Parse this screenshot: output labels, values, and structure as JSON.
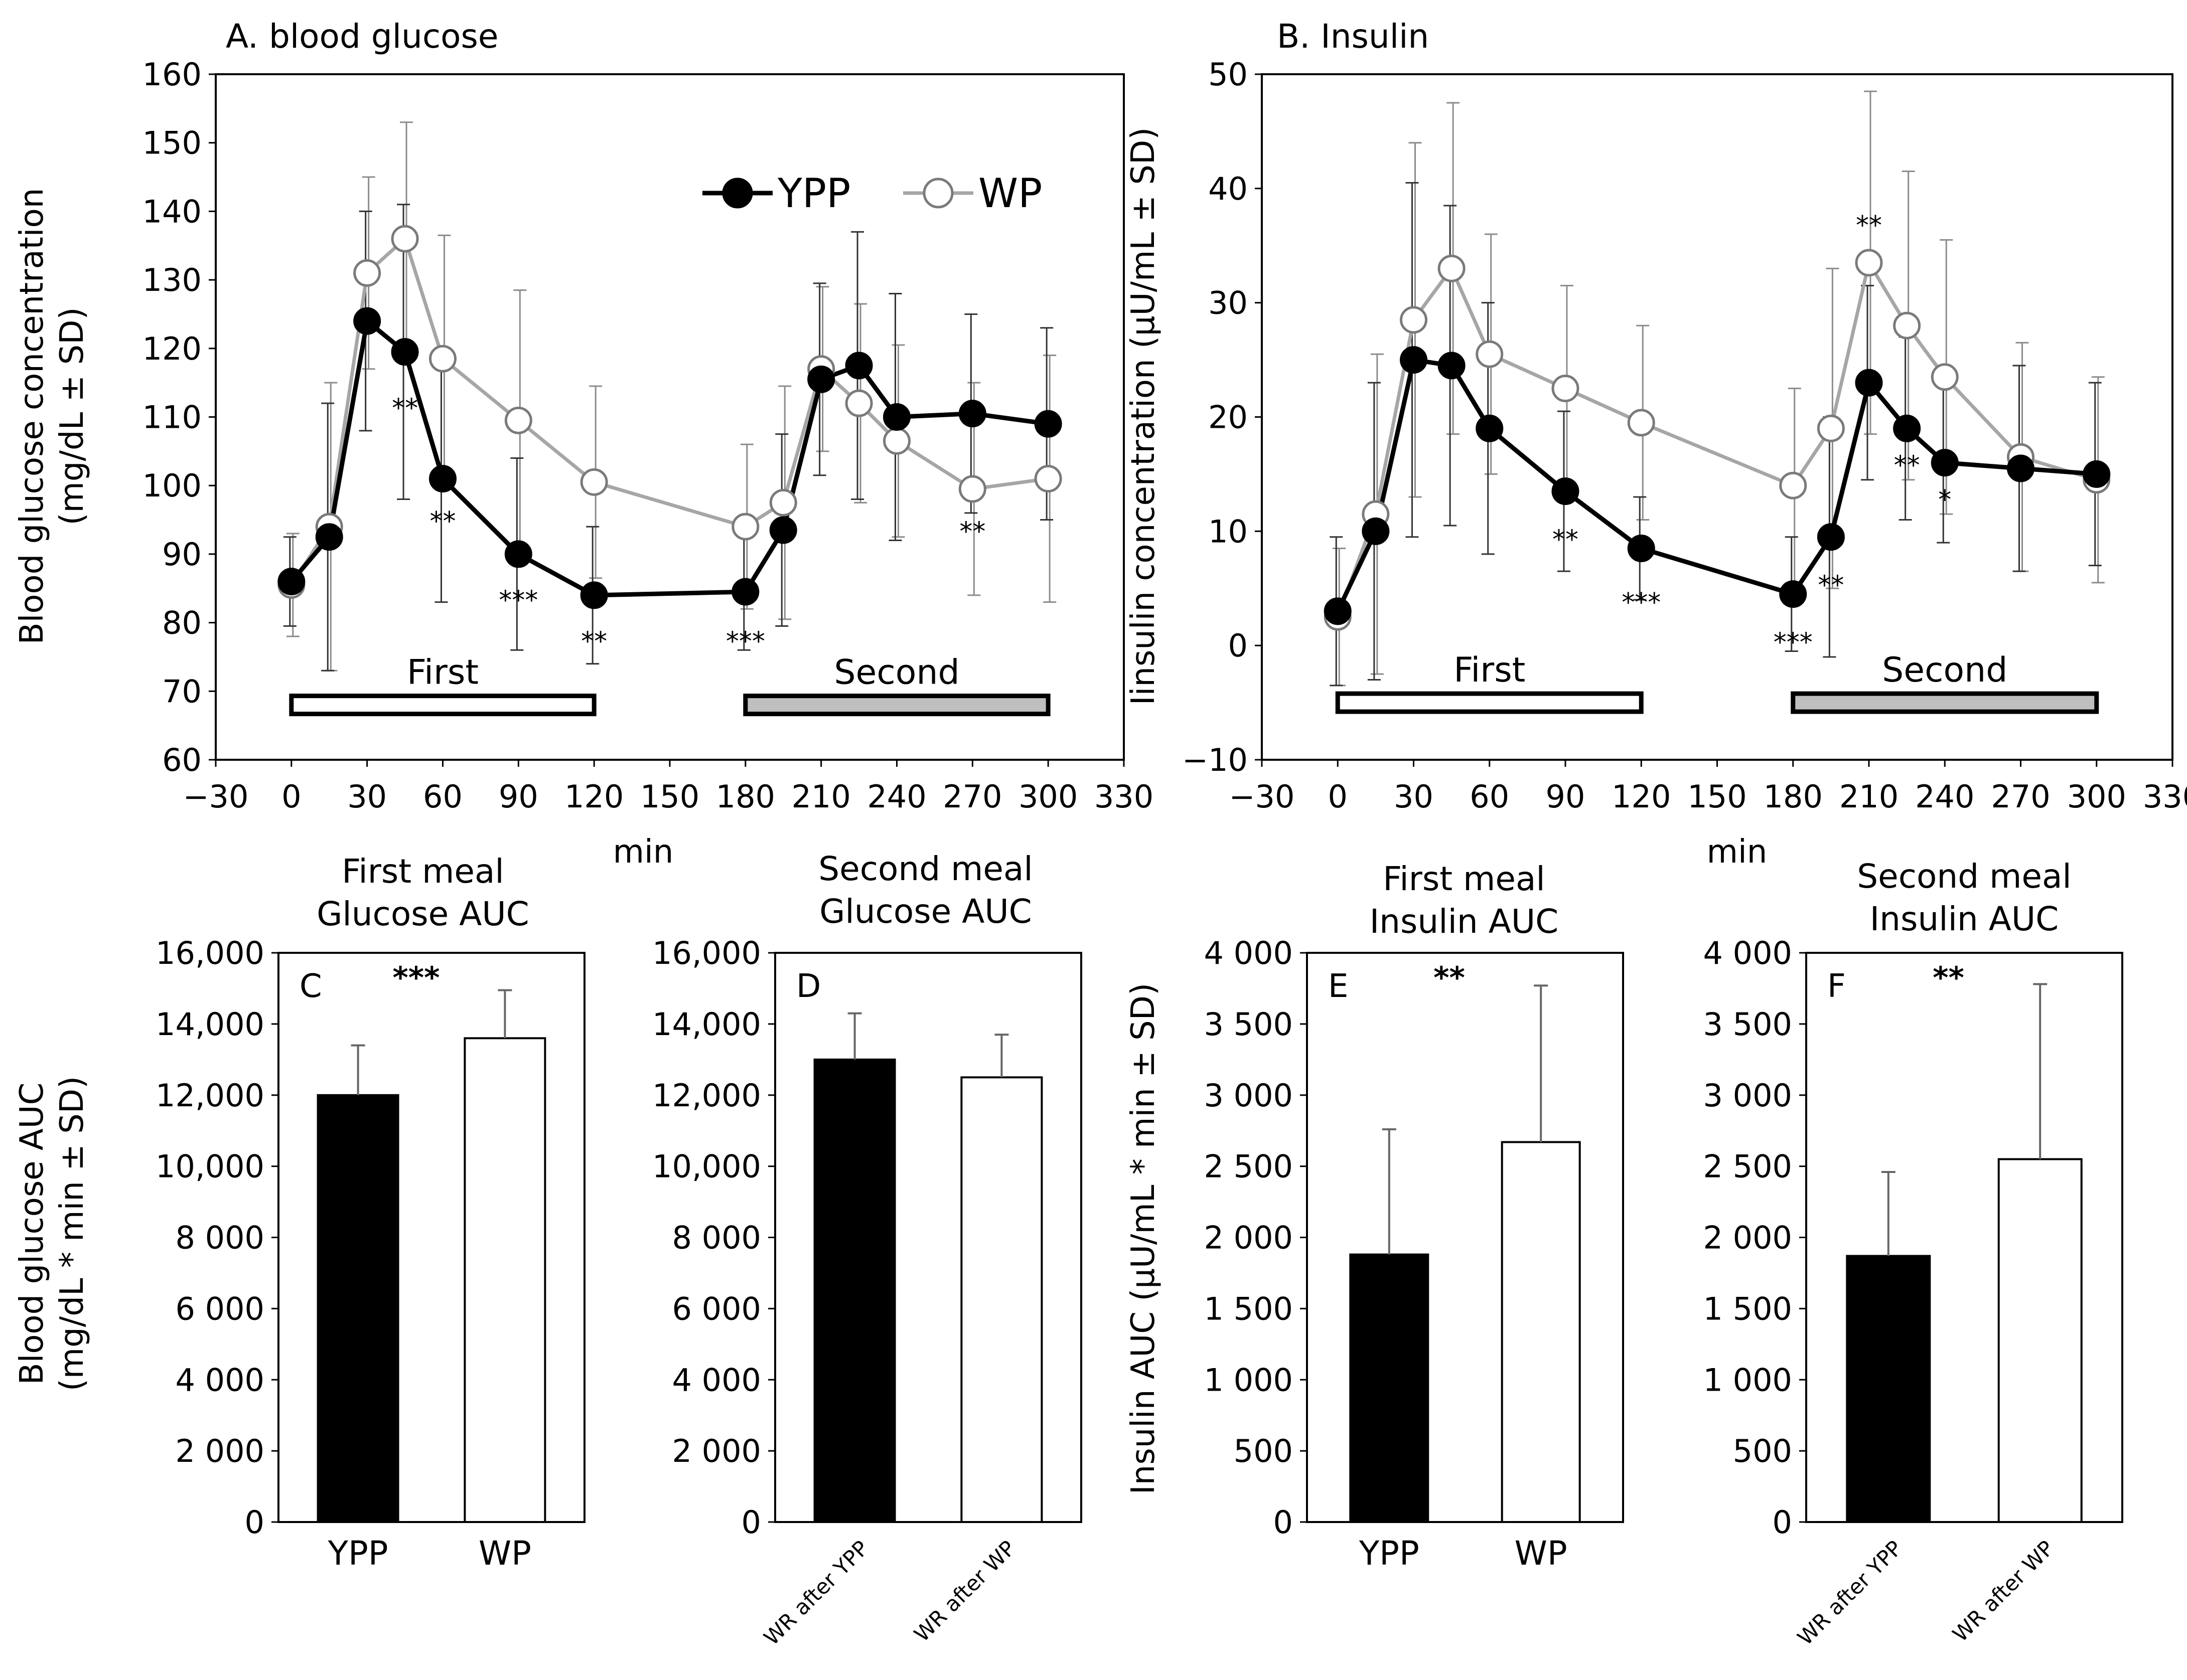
{
  "chart_data": [
    {
      "id": "A",
      "type": "line",
      "title": "A. blood glucose",
      "xlabel": "min",
      "ylabel": [
        "Blood glucose concentration",
        "(mg/dL ± SD)"
      ],
      "xlim": [
        -30,
        330
      ],
      "ylim": [
        60,
        160
      ],
      "xticks": [
        -30,
        0,
        30,
        60,
        90,
        120,
        150,
        180,
        210,
        240,
        270,
        300,
        330
      ],
      "yticks": [
        60,
        70,
        80,
        90,
        100,
        110,
        120,
        130,
        140,
        150,
        160
      ],
      "ytick_labels": [
        "60",
        "70",
        "80",
        "90",
        "100",
        "110",
        "120",
        "130",
        "140",
        "150",
        "160"
      ],
      "legend": {
        "position": "top-right",
        "entries": [
          "YPP",
          "WP"
        ]
      },
      "series": [
        {
          "name": "YPP",
          "color": "#000000",
          "marker": "filled-circle",
          "x": [
            0,
            15,
            30,
            45,
            60,
            90,
            120,
            180,
            195,
            210,
            225,
            240,
            270,
            300
          ],
          "y": [
            86,
            92.5,
            124,
            119.5,
            101,
            90,
            84,
            84.5,
            93.5,
            115.5,
            117.5,
            110,
            110.5,
            109
          ],
          "sd": [
            6.5,
            19.5,
            16,
            21.5,
            18,
            14,
            10,
            8.5,
            14,
            14,
            19.5,
            18,
            14.5,
            14
          ]
        },
        {
          "name": "WP",
          "color": "#a6a6a6",
          "marker": "open-circle",
          "x": [
            0,
            15,
            30,
            45,
            60,
            90,
            120,
            180,
            195,
            210,
            225,
            240,
            270,
            300
          ],
          "y": [
            85.5,
            94,
            131,
            136,
            118.5,
            109.5,
            100.5,
            94,
            97.5,
            117,
            112,
            106.5,
            99.5,
            101
          ],
          "sd": [
            7.5,
            21,
            14,
            17,
            18,
            19,
            14,
            12,
            17,
            12,
            14.5,
            14,
            15.5,
            18
          ]
        }
      ],
      "annotations": [
        {
          "x": 45,
          "y": 110,
          "text": "**"
        },
        {
          "x": 60,
          "y": 93.5,
          "text": "**"
        },
        {
          "x": 90,
          "y": 82,
          "text": "***"
        },
        {
          "x": 120,
          "y": 76,
          "text": "**"
        },
        {
          "x": 180,
          "y": 76,
          "text": "***"
        },
        {
          "x": 270,
          "y": 92,
          "text": "**"
        }
      ],
      "meal_bars": [
        {
          "label": "First",
          "x_start": 0,
          "x_end": 120,
          "y": 68,
          "fill": "#ffffff"
        },
        {
          "label": "Second",
          "x_start": 180,
          "x_end": 300,
          "y": 68,
          "fill": "#bfbfbf"
        }
      ]
    },
    {
      "id": "B",
      "type": "line",
      "title": "B. Insulin",
      "xlabel": "min",
      "ylabel": [
        "Iinsulin concentration (µU/mL ± SD)"
      ],
      "xlim": [
        -30,
        330
      ],
      "ylim": [
        -10,
        50
      ],
      "xticks": [
        -30,
        0,
        30,
        60,
        90,
        120,
        150,
        180,
        210,
        240,
        270,
        300,
        330
      ],
      "yticks": [
        -10,
        0,
        10,
        20,
        30,
        40,
        50
      ],
      "ytick_labels": [
        "−10",
        "0",
        "10",
        "20",
        "30",
        "40",
        "50"
      ],
      "series": [
        {
          "name": "YPP",
          "color": "#000000",
          "marker": "filled-circle",
          "x": [
            0,
            15,
            30,
            45,
            60,
            90,
            120,
            180,
            195,
            210,
            225,
            240,
            270,
            300
          ],
          "y": [
            3,
            10,
            25,
            24.5,
            19,
            13.5,
            8.5,
            4.5,
            9.5,
            23,
            19,
            16,
            15.5,
            15
          ],
          "sd": [
            6.5,
            13,
            15.5,
            14,
            11,
            7,
            4.5,
            5,
            10.5,
            8.5,
            8,
            7,
            9,
            8
          ]
        },
        {
          "name": "WP",
          "color": "#a6a6a6",
          "marker": "open-circle",
          "x": [
            0,
            15,
            30,
            45,
            60,
            90,
            120,
            180,
            195,
            210,
            225,
            240,
            270,
            300
          ],
          "y": [
            2.5,
            11.5,
            28.5,
            33,
            25.5,
            22.5,
            19.5,
            14,
            19,
            33.5,
            28,
            23.5,
            16.5,
            14.5
          ],
          "sd": [
            6,
            14,
            15.5,
            14.5,
            10.5,
            9,
            8.5,
            8.5,
            14,
            15,
            13.5,
            12,
            10,
            9
          ]
        }
      ],
      "annotations": [
        {
          "x": 90,
          "y": 8.5,
          "text": "**"
        },
        {
          "x": 120,
          "y": 3,
          "text": "***"
        },
        {
          "x": 180,
          "y": -0.5,
          "text": "***"
        },
        {
          "x": 195,
          "y": 4.5,
          "text": "**"
        },
        {
          "x": 210,
          "y": 36,
          "text": "**"
        },
        {
          "x": 225,
          "y": 15,
          "text": "**"
        },
        {
          "x": 240,
          "y": 12,
          "text": "*"
        }
      ],
      "meal_bars": [
        {
          "label": "First",
          "x_start": 0,
          "x_end": 120,
          "y": -5,
          "fill": "#ffffff"
        },
        {
          "label": "Second",
          "x_start": 180,
          "x_end": 300,
          "y": -5,
          "fill": "#bfbfbf"
        }
      ]
    },
    {
      "id": "C",
      "type": "bar",
      "panel_label": "C",
      "title": [
        "First meal",
        "Glucose AUC"
      ],
      "ylabel": [
        "Blood glucose AUC",
        "(mg/dL * min ± SD)"
      ],
      "ylim": [
        0,
        16000
      ],
      "yticks": [
        0,
        2000,
        4000,
        6000,
        8000,
        10000,
        12000,
        14000,
        16000
      ],
      "ytick_labels": [
        "0",
        "2 000",
        "4 000",
        "6 000",
        "8 000",
        "10,000",
        "12,000",
        "14,000",
        "16,000"
      ],
      "categories": [
        "YPP",
        "WP"
      ],
      "values": [
        12000,
        13600
      ],
      "sd": [
        1400,
        1350
      ],
      "fills": [
        "#000000",
        "#ffffff"
      ],
      "significance": "***"
    },
    {
      "id": "D",
      "type": "bar",
      "panel_label": "D",
      "title": [
        "Second meal",
        "Glucose AUC"
      ],
      "ylim": [
        0,
        16000
      ],
      "yticks": [
        0,
        2000,
        4000,
        6000,
        8000,
        10000,
        12000,
        14000,
        16000
      ],
      "ytick_labels": [
        "0",
        "2 000",
        "4 000",
        "6 000",
        "8 000",
        "10,000",
        "12,000",
        "14,000",
        "16,000"
      ],
      "categories": [
        "WR after YPP",
        "WR after WP"
      ],
      "values": [
        13000,
        12500
      ],
      "sd": [
        1300,
        1200
      ],
      "fills": [
        "#000000",
        "#ffffff"
      ],
      "significance": ""
    },
    {
      "id": "E",
      "type": "bar",
      "panel_label": "E",
      "title": [
        "First meal",
        "Insulin AUC"
      ],
      "ylabel": [
        "Insulin AUC (µU/mL * min ± SD)"
      ],
      "ylim": [
        0,
        4000
      ],
      "yticks": [
        0,
        500,
        1000,
        1500,
        2000,
        2500,
        3000,
        3500,
        4000
      ],
      "ytick_labels": [
        "0",
        "500",
        "1 000",
        "1 500",
        "2 000",
        "2 500",
        "3 000",
        "3 500",
        "4 000"
      ],
      "categories": [
        "YPP",
        "WP"
      ],
      "values": [
        1880,
        2670
      ],
      "sd": [
        880,
        1100
      ],
      "fills": [
        "#000000",
        "#ffffff"
      ],
      "significance": "**"
    },
    {
      "id": "F",
      "type": "bar",
      "panel_label": "F",
      "title": [
        "Second meal",
        "Insulin AUC"
      ],
      "ylim": [
        0,
        4000
      ],
      "yticks": [
        0,
        500,
        1000,
        1500,
        2000,
        2500,
        3000,
        3500,
        4000
      ],
      "ytick_labels": [
        "0",
        "500",
        "1 000",
        "1 500",
        "2 000",
        "2 500",
        "3 000",
        "3 500",
        "4 000"
      ],
      "categories": [
        "WR after YPP",
        "WR after WP"
      ],
      "values": [
        1870,
        2550
      ],
      "sd": [
        590,
        1230
      ],
      "fills": [
        "#000000",
        "#ffffff"
      ],
      "significance": "**"
    }
  ]
}
